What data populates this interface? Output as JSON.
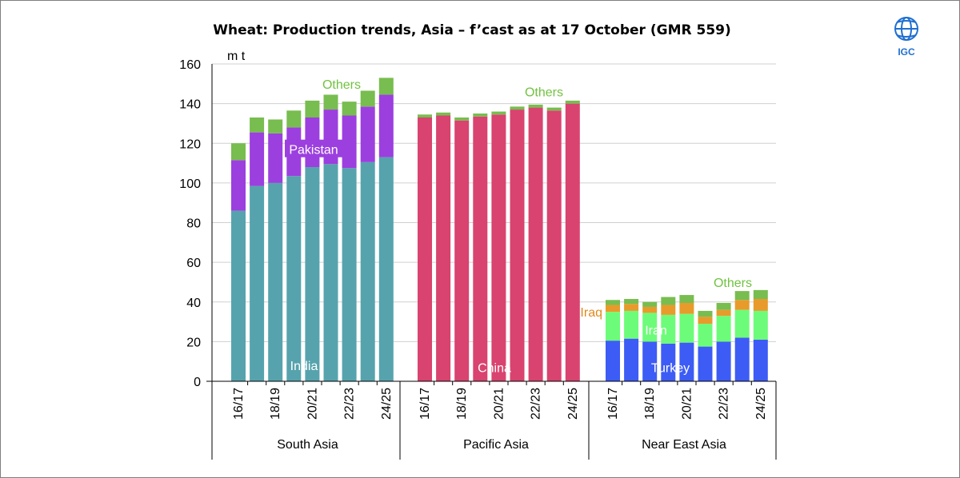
{
  "brand": {
    "logo_text": "IGC",
    "logo_color": "#1f6fd1"
  },
  "chart_data": {
    "type": "bar",
    "stacked": true,
    "title": "Wheat: Production trends, Asia – f’cast as at 17 October (GMR 559)",
    "ylabel": "m t",
    "ylim": [
      0,
      160
    ],
    "yticks": [
      0,
      20,
      40,
      60,
      80,
      100,
      120,
      140,
      160
    ],
    "grid": true,
    "colors": {
      "India": "#56a3ad",
      "Pakistan": "#9c3fdf",
      "China": "#d9436f",
      "Turkey": "#3d5cf5",
      "Iran": "#6dfc79",
      "Iraq": "#e89b2a",
      "Others": "#78bd4f",
      "others_label": "#72c240",
      "iraq_label": "#e08a1d"
    },
    "groups": [
      {
        "name": "South Asia",
        "categories": [
          "16/17",
          "17/18",
          "18/19",
          "19/20",
          "20/21",
          "21/22",
          "22/23",
          "23/24",
          "24/25"
        ],
        "tick_labels": [
          "16/17",
          "18/19",
          "20/21",
          "22/23",
          "24/25"
        ],
        "series": [
          {
            "name": "India",
            "values": [
              86,
              98.5,
              100,
              103.5,
              108,
              109.5,
              107.5,
              110.5,
              113
            ]
          },
          {
            "name": "Pakistan",
            "values": [
              25.5,
              27,
              25,
              24.5,
              25,
              27.5,
              26.5,
              28,
              31.5
            ]
          },
          {
            "name": "Others",
            "values": [
              8.5,
              7.5,
              7,
              8.5,
              8.5,
              7.5,
              7,
              8,
              8.5
            ]
          }
        ],
        "labels": [
          {
            "text": "India",
            "series": "India",
            "y": 8
          },
          {
            "text": "Pakistan",
            "series": "Pakistan",
            "y": 117
          },
          {
            "text": "Others",
            "series": "Others",
            "y": 150
          }
        ]
      },
      {
        "name": "Pacific Asia",
        "categories": [
          "16/17",
          "17/18",
          "18/19",
          "19/20",
          "20/21",
          "21/22",
          "22/23",
          "23/24",
          "24/25"
        ],
        "tick_labels": [
          "16/17",
          "18/19",
          "20/21",
          "22/23",
          "24/25"
        ],
        "series": [
          {
            "name": "China",
            "values": [
              133,
              134,
              131.5,
              133.5,
              134.5,
              137,
              138,
              136.5,
              140
            ]
          },
          {
            "name": "Others",
            "values": [
              1.5,
              1.5,
              1.5,
              1.5,
              1.5,
              1.5,
              1.5,
              1.5,
              1.5
            ]
          }
        ],
        "labels": [
          {
            "text": "China",
            "series": "China",
            "y": 7
          },
          {
            "text": "Others",
            "series": "Others",
            "y": 146
          }
        ]
      },
      {
        "name": "Near East Asia",
        "categories": [
          "16/17",
          "17/18",
          "18/19",
          "19/20",
          "20/21",
          "21/22",
          "22/23",
          "23/24",
          "24/25"
        ],
        "tick_labels": [
          "16/17",
          "18/19",
          "20/21",
          "22/23",
          "24/25"
        ],
        "series": [
          {
            "name": "Turkey",
            "values": [
              20.5,
              21.5,
              20,
              19,
              19.5,
              17.5,
              20,
              22,
              21
            ]
          },
          {
            "name": "Iran",
            "values": [
              14.5,
              14,
              14.5,
              14.5,
              14.5,
              11.5,
              13,
              14,
              14.5
            ]
          },
          {
            "name": "Iraq",
            "values": [
              3.5,
              3.5,
              3,
              5,
              5.5,
              3.5,
              3,
              5,
              6
            ]
          },
          {
            "name": "Others",
            "values": [
              2.5,
              2.5,
              2.5,
              4,
              4,
              3,
              3.5,
              4.5,
              4.5
            ]
          }
        ],
        "labels": [
          {
            "text": "Turkey",
            "series": "Turkey",
            "y": 7
          },
          {
            "text": "Iran",
            "series": "Iran",
            "y": 26
          },
          {
            "text": "Iraq",
            "series": "Iraq",
            "y": 35
          },
          {
            "text": "Others",
            "series": "Others",
            "y": 50
          }
        ]
      }
    ]
  }
}
